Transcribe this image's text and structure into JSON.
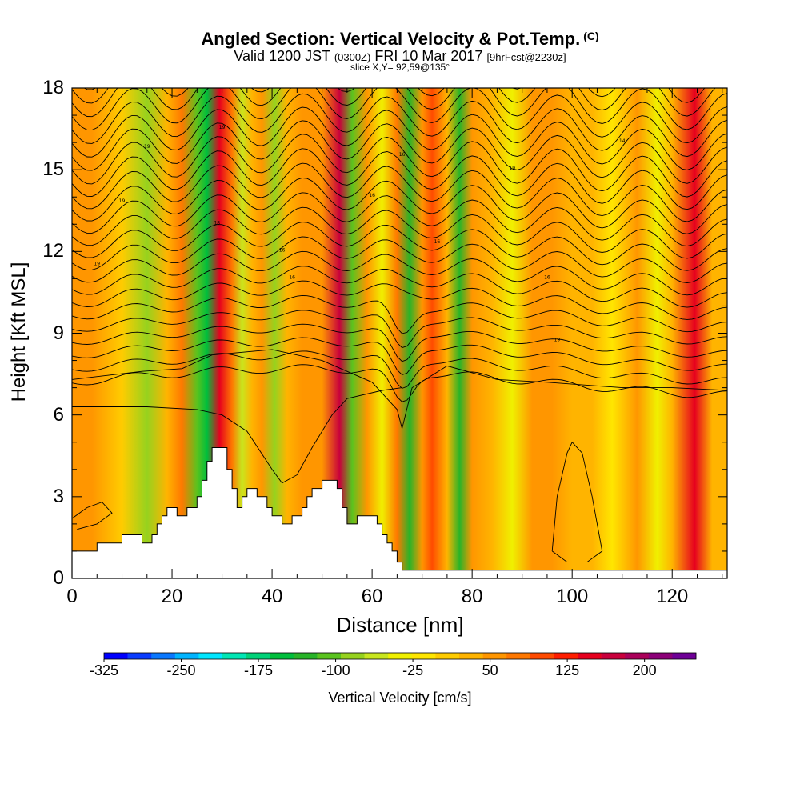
{
  "title": {
    "main": "Angled Section: Vertical Velocity & Pot.Temp.",
    "main_suffix": "(C)",
    "valid_prefix": "Valid 1200 JST",
    "valid_utc": "(0300Z)",
    "valid_date": "FRI 10 Mar 2017",
    "forecast": "[9hrFcst@2230z]",
    "slice": "slice X,Y= 92,59@135°"
  },
  "chart_data": {
    "type": "heatmap",
    "xlabel": "Distance [nm]",
    "ylabel": "Height [Kft MSL]",
    "xlim": [
      0,
      131
    ],
    "ylim": [
      0,
      18
    ],
    "x_ticks": [
      0,
      20,
      40,
      60,
      80,
      100,
      120
    ],
    "y_ticks": [
      0,
      3,
      6,
      9,
      12,
      15,
      18
    ],
    "x_tick_labels": [
      "0",
      "20",
      "40",
      "60",
      "80",
      "100",
      "120"
    ],
    "y_tick_labels": [
      "0",
      "3",
      "6",
      "9",
      "12",
      "15",
      "18"
    ],
    "colorbar": {
      "label": "Vertical Velocity [cm/s]",
      "tick_labels": [
        "-325",
        "-250",
        "-175",
        "-100",
        "-25",
        "50",
        "125",
        "200"
      ],
      "tick_values": [
        -325,
        -250,
        -175,
        -100,
        -25,
        50,
        125,
        200
      ],
      "range": [
        -325,
        250
      ],
      "colors": [
        "#0000ff",
        "#0a3cff",
        "#0a78ff",
        "#00b4ff",
        "#00e6ff",
        "#00e6b4",
        "#00d278",
        "#00be3c",
        "#28b428",
        "#5ac31e",
        "#96d21e",
        "#c8e61e",
        "#f0f000",
        "#ffe600",
        "#ffcc00",
        "#ffb400",
        "#ff9600",
        "#ff7800",
        "#ff4b00",
        "#ff1e00",
        "#e6001e",
        "#c8003c",
        "#aa005a",
        "#8c0078",
        "#6e0096"
      ]
    },
    "terrain": [
      [
        0,
        1
      ],
      [
        5,
        1
      ],
      [
        5,
        1.3
      ],
      [
        10,
        1.3
      ],
      [
        10,
        1.6
      ],
      [
        14,
        1.6
      ],
      [
        14,
        1.3
      ],
      [
        16,
        1.3
      ],
      [
        16,
        1.6
      ],
      [
        17,
        1.6
      ],
      [
        17,
        2
      ],
      [
        18,
        2
      ],
      [
        18,
        2.3
      ],
      [
        19,
        2.3
      ],
      [
        19,
        2.6
      ],
      [
        21,
        2.6
      ],
      [
        21,
        2.3
      ],
      [
        23,
        2.3
      ],
      [
        23,
        2.6
      ],
      [
        25,
        2.6
      ],
      [
        25,
        3
      ],
      [
        26,
        3
      ],
      [
        26,
        3.6
      ],
      [
        27,
        3.6
      ],
      [
        27,
        4.3
      ],
      [
        28,
        4.3
      ],
      [
        28,
        4.8
      ],
      [
        31,
        4.8
      ],
      [
        31,
        4
      ],
      [
        32,
        4
      ],
      [
        32,
        3.3
      ],
      [
        33,
        3.3
      ],
      [
        33,
        2.6
      ],
      [
        34,
        2.6
      ],
      [
        34,
        3
      ],
      [
        35,
        3
      ],
      [
        35,
        3.3
      ],
      [
        37,
        3.3
      ],
      [
        37,
        3
      ],
      [
        39,
        3
      ],
      [
        39,
        2.6
      ],
      [
        40,
        2.6
      ],
      [
        40,
        2.3
      ],
      [
        42,
        2.3
      ],
      [
        42,
        2
      ],
      [
        44,
        2
      ],
      [
        44,
        2.3
      ],
      [
        46,
        2.3
      ],
      [
        46,
        2.6
      ],
      [
        47,
        2.6
      ],
      [
        47,
        3
      ],
      [
        48,
        3
      ],
      [
        48,
        3.3
      ],
      [
        50,
        3.3
      ],
      [
        50,
        3.6
      ],
      [
        53,
        3.6
      ],
      [
        53,
        3.3
      ],
      [
        54,
        3.3
      ],
      [
        54,
        2.6
      ],
      [
        55,
        2.6
      ],
      [
        55,
        2
      ],
      [
        57,
        2
      ],
      [
        57,
        2.3
      ],
      [
        61,
        2.3
      ],
      [
        61,
        2
      ],
      [
        62,
        2
      ],
      [
        62,
        1.6
      ],
      [
        63,
        1.6
      ],
      [
        63,
        1.3
      ],
      [
        64,
        1.3
      ],
      [
        64,
        1
      ],
      [
        65,
        1
      ],
      [
        65,
        0.6
      ],
      [
        66,
        0.6
      ],
      [
        66,
        0.3
      ],
      [
        131,
        0.3
      ],
      [
        131,
        0
      ],
      [
        0,
        0
      ]
    ],
    "w_columns": [
      {
        "x": 4,
        "w": 60
      },
      {
        "x": 10,
        "w": 10
      },
      {
        "x": 15,
        "w": -90
      },
      {
        "x": 19,
        "w": 40
      },
      {
        "x": 22,
        "w": 70
      },
      {
        "x": 25,
        "w": -110
      },
      {
        "x": 27,
        "w": -150
      },
      {
        "x": 29.5,
        "w": 150
      },
      {
        "x": 32,
        "w": 80
      },
      {
        "x": 34,
        "w": -50
      },
      {
        "x": 36,
        "w": 40
      },
      {
        "x": 38,
        "w": 60
      },
      {
        "x": 40.5,
        "w": -75
      },
      {
        "x": 43,
        "w": 40
      },
      {
        "x": 46,
        "w": 55
      },
      {
        "x": 50,
        "w": 50
      },
      {
        "x": 53.5,
        "w": 165
      },
      {
        "x": 56,
        "w": -110
      },
      {
        "x": 59,
        "w": 60
      },
      {
        "x": 62,
        "w": -35
      },
      {
        "x": 65,
        "w": 70
      },
      {
        "x": 67.5,
        "w": -130
      },
      {
        "x": 70,
        "w": 65
      },
      {
        "x": 72,
        "w": 105
      },
      {
        "x": 75,
        "w": 20
      },
      {
        "x": 77.5,
        "w": -140
      },
      {
        "x": 80,
        "w": 60
      },
      {
        "x": 84,
        "w": 20
      },
      {
        "x": 88,
        "w": -40
      },
      {
        "x": 92,
        "w": 50
      },
      {
        "x": 96,
        "w": 65
      },
      {
        "x": 100,
        "w": 25
      },
      {
        "x": 104,
        "w": 40
      },
      {
        "x": 108,
        "w": -25
      },
      {
        "x": 113,
        "w": 45
      },
      {
        "x": 117,
        "w": -30
      },
      {
        "x": 120,
        "w": 30
      },
      {
        "x": 124.5,
        "w": 140
      },
      {
        "x": 128,
        "w": 30
      }
    ],
    "theta_contours": {
      "levels_count": 24,
      "labels": [
        "19",
        "19",
        "19",
        "19",
        "18",
        "16",
        "16",
        "16",
        "16",
        "16",
        "19",
        "16",
        "19",
        "14"
      ]
    }
  }
}
